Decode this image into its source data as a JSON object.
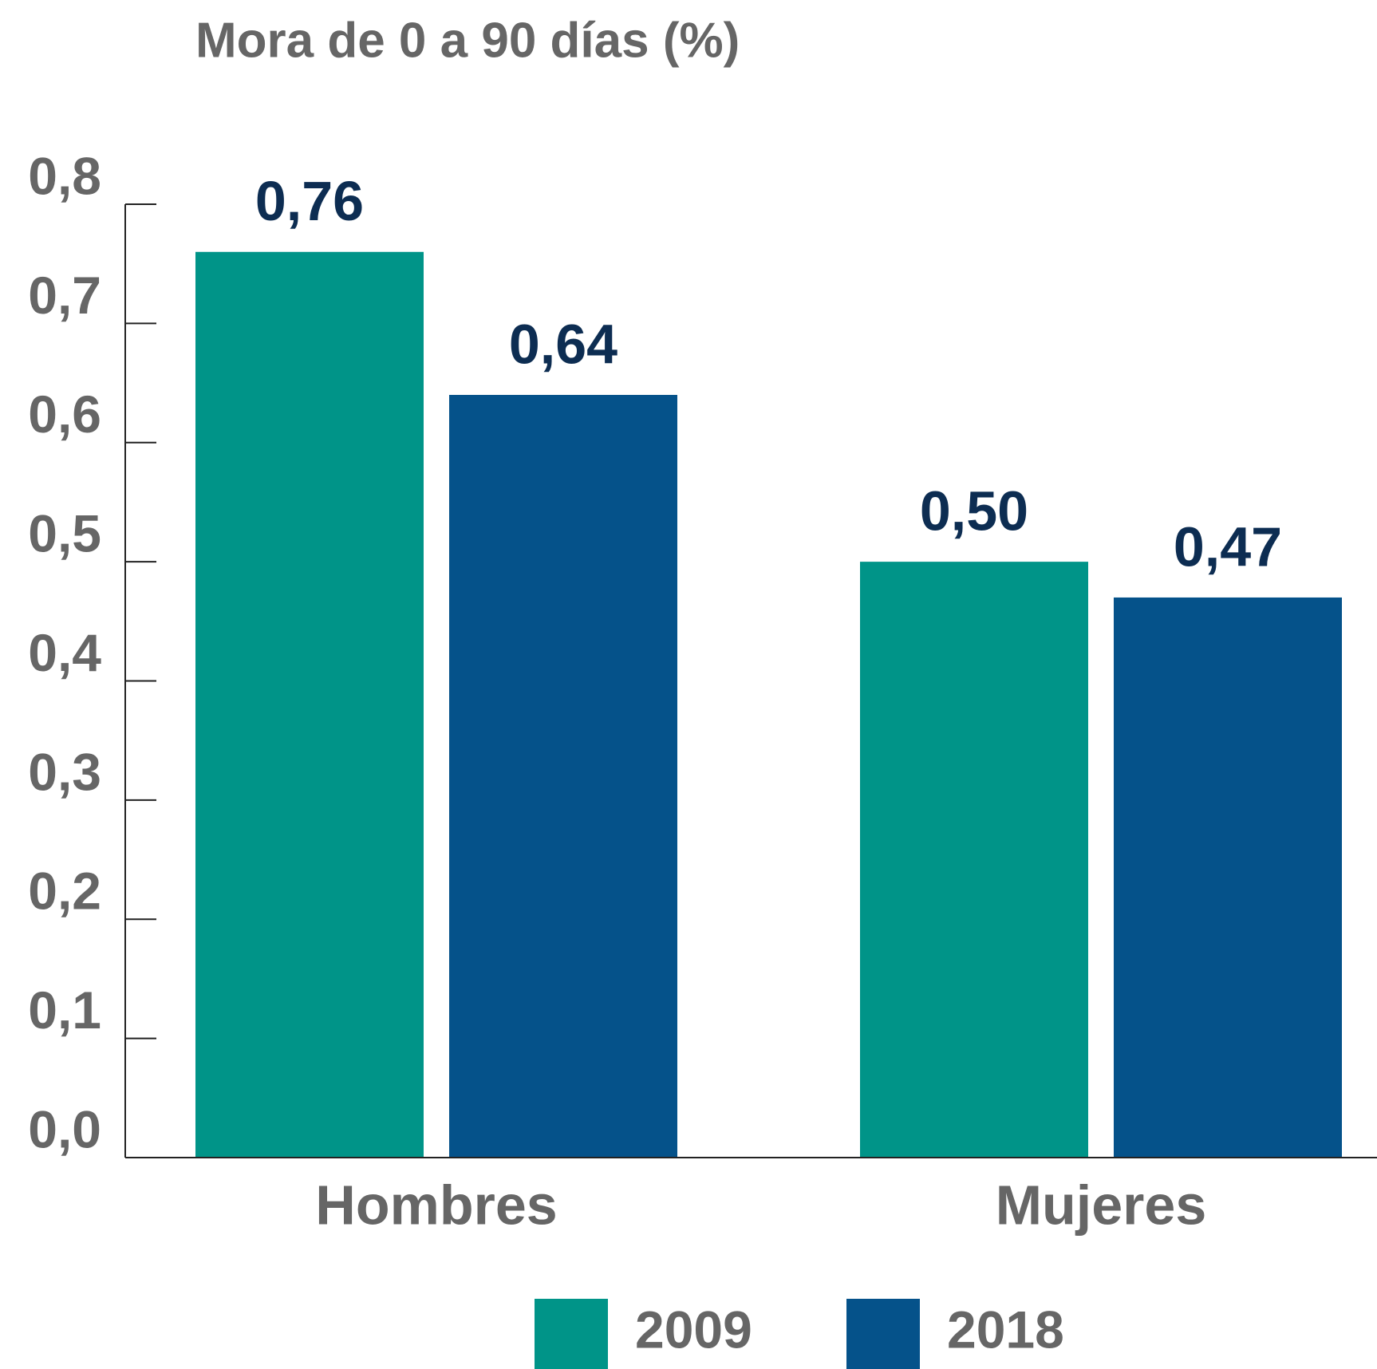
{
  "chart_data": {
    "type": "bar",
    "title": "Mora de 0 a 90 días (%)",
    "categories": [
      "Hombres",
      "Mujeres"
    ],
    "series": [
      {
        "name": "2009",
        "color": "#009488",
        "values": [
          0.76,
          0.5
        ],
        "value_labels": [
          "0,76",
          "0,50"
        ]
      },
      {
        "name": "2018",
        "color": "#05528a",
        "values": [
          0.64,
          0.47
        ],
        "value_labels": [
          "0,64",
          "0,47"
        ]
      }
    ],
    "ylim": [
      0,
      0.8
    ],
    "yticks": [
      {
        "value": 0,
        "label": "0,0"
      },
      {
        "value": 0.1,
        "label": "0,1"
      },
      {
        "value": 0.2,
        "label": "0,2"
      },
      {
        "value": 0.3,
        "label": "0,3"
      },
      {
        "value": 0.4,
        "label": "0,4"
      },
      {
        "value": 0.5,
        "label": "0,5"
      },
      {
        "value": 0.6,
        "label": "0,6"
      },
      {
        "value": 0.7,
        "label": "0,7"
      },
      {
        "value": 0.8,
        "label": "0,8"
      }
    ],
    "legend": "bottom"
  }
}
